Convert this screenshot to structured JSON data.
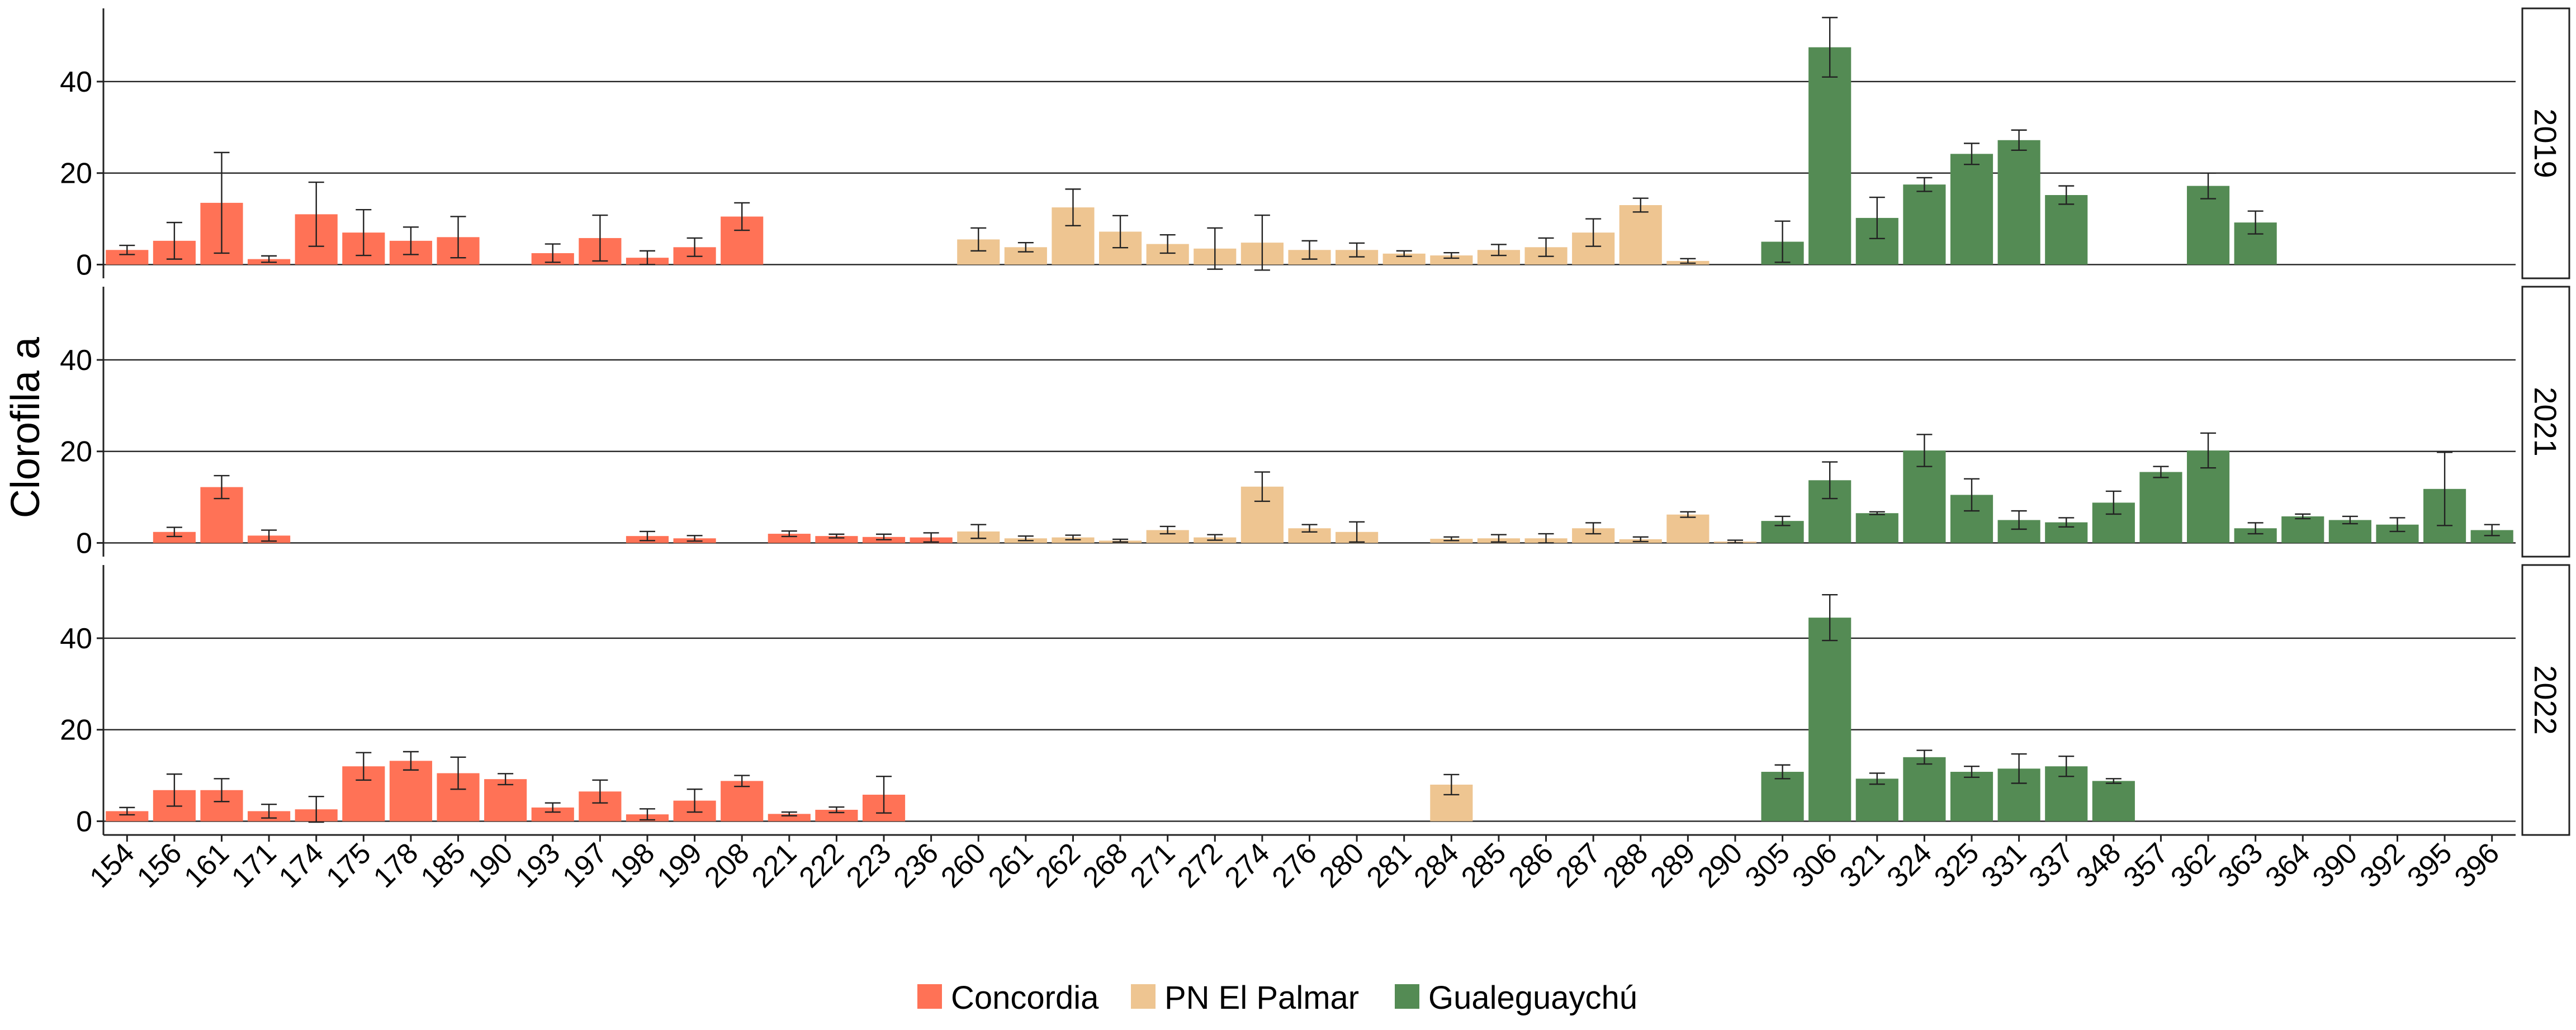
{
  "chart_data": {
    "type": "bar",
    "ylabel": "Clorofila a",
    "xlabel": "",
    "ylim": [
      -3,
      56
    ],
    "yticks": [
      0,
      20,
      40
    ],
    "grid": "horizontal",
    "legend_position": "bottom",
    "categories": [
      "154",
      "156",
      "161",
      "171",
      "174",
      "175",
      "178",
      "185",
      "190",
      "193",
      "197",
      "198",
      "199",
      "208",
      "221",
      "222",
      "223",
      "236",
      "260",
      "261",
      "262",
      "268",
      "271",
      "272",
      "274",
      "276",
      "280",
      "281",
      "284",
      "285",
      "286",
      "287",
      "288",
      "289",
      "290",
      "305",
      "306",
      "321",
      "324",
      "325",
      "331",
      "337",
      "348",
      "357",
      "362",
      "363",
      "364",
      "390",
      "392",
      "395",
      "396"
    ],
    "groups": [
      {
        "name": "Concordia",
        "color": "#FF7256",
        "categories": [
          "154",
          "156",
          "161",
          "171",
          "174",
          "175",
          "178",
          "185",
          "190",
          "193",
          "197",
          "198",
          "199",
          "208",
          "221",
          "222",
          "223",
          "236"
        ]
      },
      {
        "name": "PN El Palmar",
        "color": "#EEC591",
        "categories": [
          "260",
          "261",
          "262",
          "268",
          "271",
          "272",
          "274",
          "276",
          "280",
          "281",
          "284",
          "285",
          "286",
          "287",
          "288",
          "289",
          "290"
        ]
      },
      {
        "name": "Gualeguaychú",
        "color": "#548B54",
        "categories": [
          "305",
          "306",
          "321",
          "324",
          "325",
          "331",
          "337",
          "348",
          "357",
          "362",
          "363",
          "364",
          "390",
          "392",
          "395",
          "396"
        ]
      }
    ],
    "panels": [
      {
        "label": "2019",
        "values": [
          3.2,
          5.2,
          13.5,
          1.2,
          11,
          7,
          5.2,
          6,
          null,
          2.5,
          5.8,
          1.5,
          3.8,
          10.5,
          null,
          null,
          null,
          null,
          5.5,
          3.8,
          12.5,
          7.2,
          4.5,
          3.5,
          4.8,
          3.2,
          3.2,
          2.4,
          2.0,
          3.2,
          3.8,
          7.0,
          13.0,
          0.8,
          null,
          5.0,
          47.5,
          10.2,
          17.5,
          24.2,
          27.2,
          15.2,
          null,
          null,
          17.2,
          9.2,
          null,
          null,
          null,
          null,
          null
        ],
        "errors": [
          1,
          4,
          11,
          0.7,
          7,
          5,
          3,
          4.5,
          null,
          2,
          5,
          1.5,
          2,
          3,
          null,
          null,
          null,
          null,
          2.5,
          1,
          4,
          3.5,
          2,
          4.5,
          6,
          2,
          1.5,
          0.6,
          0.6,
          1.2,
          2,
          3,
          1.5,
          0.5,
          null,
          4.5,
          6.5,
          4.5,
          1.5,
          2.3,
          2.2,
          2,
          null,
          null,
          2.8,
          2.5,
          null,
          null,
          null,
          null,
          null
        ]
      },
      {
        "label": "2021",
        "values": [
          null,
          2.4,
          12.2,
          1.6,
          null,
          null,
          null,
          null,
          null,
          null,
          null,
          1.5,
          1.0,
          null,
          2.0,
          1.5,
          1.3,
          1.2,
          2.5,
          1.0,
          1.2,
          0.5,
          2.8,
          1.2,
          12.3,
          3.2,
          2.4,
          null,
          0.9,
          1.0,
          1.0,
          3.2,
          0.8,
          6.2,
          0.3,
          4.8,
          13.7,
          6.5,
          20.2,
          10.5,
          5.0,
          4.5,
          8.8,
          15.5,
          20.2,
          3.2,
          5.8,
          5.0,
          4.0,
          11.8,
          2.8
        ],
        "errors": [
          null,
          1,
          2.5,
          1.2,
          null,
          null,
          null,
          null,
          null,
          null,
          null,
          1,
          0.6,
          null,
          0.6,
          0.4,
          0.6,
          1,
          1.5,
          0.5,
          0.5,
          0.3,
          0.8,
          0.6,
          3.2,
          0.8,
          2.2,
          null,
          0.4,
          0.8,
          1,
          1.2,
          0.5,
          0.6,
          0.3,
          1,
          4,
          0.3,
          3.5,
          3.5,
          2,
          1,
          2.5,
          1.2,
          3.8,
          1.2,
          0.5,
          0.8,
          1.5,
          8,
          1.2
        ]
      },
      {
        "label": "2022",
        "values": [
          2.2,
          6.8,
          6.8,
          2.2,
          2.6,
          12.0,
          13.2,
          10.5,
          9.2,
          3.0,
          6.5,
          1.5,
          4.5,
          8.8,
          1.6,
          2.5,
          5.8,
          null,
          null,
          null,
          null,
          null,
          null,
          null,
          null,
          null,
          null,
          null,
          8.0,
          null,
          null,
          null,
          null,
          null,
          null,
          10.8,
          44.5,
          9.3,
          14.0,
          10.8,
          11.5,
          12.0,
          8.8,
          null,
          null,
          null,
          null,
          null,
          null,
          null,
          null
        ],
        "errors": [
          0.8,
          3.5,
          2.5,
          1.5,
          2.8,
          3,
          2,
          3.5,
          1.2,
          1,
          2.5,
          1.2,
          2.5,
          1.2,
          0.4,
          0.6,
          4,
          null,
          null,
          null,
          null,
          null,
          null,
          null,
          null,
          null,
          null,
          null,
          2.2,
          null,
          null,
          null,
          null,
          null,
          null,
          1.5,
          5,
          1.2,
          1.5,
          1.2,
          3.2,
          2.2,
          0.5,
          null,
          null,
          null,
          null,
          null,
          null,
          null,
          null
        ]
      }
    ]
  }
}
